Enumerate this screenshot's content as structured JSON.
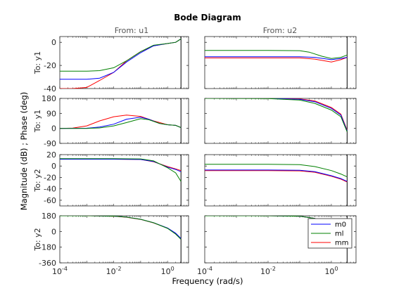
{
  "chart_data": {
    "type": "line",
    "title": "Bode Diagram",
    "xlabel": "Frequency  (rad/s)",
    "ylabel": "Magnitude (dB) ; Phase (deg)",
    "xscale": "log",
    "xlim": [
      0.0001,
      6
    ],
    "columns": [
      "From: u1",
      "From: u2"
    ],
    "rows": [
      {
        "label": "To: y1",
        "kind": "magnitude",
        "ylim": [
          -40,
          5
        ],
        "ticks": [
          -40,
          -20,
          0
        ],
        "tick_labels": [
          "-40",
          "-20",
          "0"
        ]
      },
      {
        "label": "To: y1",
        "kind": "phase",
        "ylim": [
          -90,
          180
        ],
        "ticks": [
          -90,
          0,
          90,
          180
        ],
        "tick_labels": [
          "-90",
          "0",
          "90",
          "180"
        ]
      },
      {
        "label": "To: y2",
        "kind": "magnitude",
        "ylim": [
          -70,
          20
        ],
        "ticks": [
          -60,
          -40,
          -20,
          0,
          20
        ],
        "tick_labels": [
          "-60",
          "-40",
          "-20",
          "0",
          "20"
        ]
      },
      {
        "label": "To: y2",
        "kind": "phase",
        "ylim": [
          -360,
          180
        ],
        "ticks": [
          -360,
          -180,
          0,
          180
        ],
        "tick_labels": [
          "-360",
          "-180",
          "0",
          "180"
        ]
      }
    ],
    "xticks": [
      0.0001,
      0.01,
      1
    ],
    "xtick_labels": [
      {
        "base": "10",
        "exp": "-4"
      },
      {
        "base": "10",
        "exp": "-2"
      },
      {
        "base": "10",
        "exp": "0"
      }
    ],
    "nyquist_frequency": 3.14,
    "grid": false,
    "legend": {
      "position": "bottom-right",
      "panel": "row 4, From: u2"
    },
    "series": [
      {
        "name": "m0",
        "color": "#0000ff"
      },
      {
        "name": "ml",
        "color": "#008000"
      },
      {
        "name": "mm",
        "color": "#ff0000"
      }
    ],
    "panels": [
      {
        "row": 0,
        "col": 0,
        "curves": {
          "m0": [
            [
              0.0001,
              -32
            ],
            [
              0.001,
              -32
            ],
            [
              0.003,
              -31
            ],
            [
              0.01,
              -26
            ],
            [
              0.03,
              -17
            ],
            [
              0.1,
              -9
            ],
            [
              0.3,
              -3
            ],
            [
              1,
              -1
            ],
            [
              2,
              0
            ],
            [
              3.14,
              3
            ]
          ],
          "ml": [
            [
              0.0001,
              -25
            ],
            [
              0.001,
              -25
            ],
            [
              0.003,
              -24.5
            ],
            [
              0.01,
              -22
            ],
            [
              0.03,
              -16
            ],
            [
              0.1,
              -8
            ],
            [
              0.3,
              -2.5
            ],
            [
              1,
              -1
            ],
            [
              2,
              0
            ],
            [
              3.14,
              3
            ]
          ],
          "mm": [
            [
              0.0001,
              -40
            ],
            [
              0.0003,
              -40
            ],
            [
              0.001,
              -39
            ],
            [
              0.003,
              -33
            ],
            [
              0.01,
              -26
            ],
            [
              0.03,
              -16
            ],
            [
              0.1,
              -8
            ],
            [
              0.3,
              -3
            ],
            [
              1,
              -1
            ],
            [
              2,
              0
            ],
            [
              3.14,
              3
            ]
          ]
        }
      },
      {
        "row": 0,
        "col": 1,
        "curves": {
          "m0": [
            [
              0.0001,
              -12.5
            ],
            [
              0.01,
              -12.5
            ],
            [
              0.1,
              -12.5
            ],
            [
              0.3,
              -13
            ],
            [
              1,
              -15
            ],
            [
              2,
              -14
            ],
            [
              3.14,
              -13
            ]
          ],
          "ml": [
            [
              0.0001,
              -7
            ],
            [
              0.01,
              -7
            ],
            [
              0.1,
              -7.2
            ],
            [
              0.2,
              -8.5
            ],
            [
              0.5,
              -12
            ],
            [
              1,
              -14
            ],
            [
              2,
              -13
            ],
            [
              3.14,
              -11
            ]
          ],
          "mm": [
            [
              0.0001,
              -13.5
            ],
            [
              0.01,
              -13.5
            ],
            [
              0.1,
              -13.5
            ],
            [
              0.3,
              -14.5
            ],
            [
              1,
              -17
            ],
            [
              2,
              -15
            ],
            [
              3.14,
              -13
            ]
          ]
        }
      },
      {
        "row": 1,
        "col": 0,
        "curves": {
          "m0": [
            [
              0.0001,
              0
            ],
            [
              0.001,
              1
            ],
            [
              0.003,
              8
            ],
            [
              0.01,
              25
            ],
            [
              0.03,
              55
            ],
            [
              0.1,
              67
            ],
            [
              0.2,
              55
            ],
            [
              0.5,
              30
            ],
            [
              1,
              22
            ],
            [
              2,
              18
            ],
            [
              3.14,
              5
            ]
          ],
          "ml": [
            [
              0.0001,
              0
            ],
            [
              0.001,
              0
            ],
            [
              0.003,
              3
            ],
            [
              0.01,
              15
            ],
            [
              0.03,
              35
            ],
            [
              0.1,
              58
            ],
            [
              0.2,
              52
            ],
            [
              0.5,
              30
            ],
            [
              1,
              22
            ],
            [
              2,
              18
            ],
            [
              3.14,
              5
            ]
          ],
          "mm": [
            [
              0.0001,
              0
            ],
            [
              0.0003,
              2
            ],
            [
              0.001,
              15
            ],
            [
              0.003,
              45
            ],
            [
              0.01,
              70
            ],
            [
              0.03,
              80
            ],
            [
              0.1,
              72
            ],
            [
              0.3,
              45
            ],
            [
              1,
              22
            ],
            [
              2,
              18
            ],
            [
              3.14,
              5
            ]
          ]
        }
      },
      {
        "row": 1,
        "col": 1,
        "curves": {
          "m0": [
            [
              0.0001,
              180
            ],
            [
              0.01,
              180
            ],
            [
              0.1,
              175
            ],
            [
              0.3,
              160
            ],
            [
              1,
              120
            ],
            [
              2,
              80
            ],
            [
              3.14,
              -15
            ]
          ],
          "ml": [
            [
              0.0001,
              180
            ],
            [
              0.01,
              179
            ],
            [
              0.1,
              170
            ],
            [
              0.3,
              150
            ],
            [
              1,
              110
            ],
            [
              2,
              70
            ],
            [
              3.14,
              -20
            ]
          ],
          "mm": [
            [
              0.0001,
              180
            ],
            [
              0.01,
              180
            ],
            [
              0.1,
              177
            ],
            [
              0.3,
              165
            ],
            [
              1,
              125
            ],
            [
              2,
              85
            ],
            [
              3.14,
              -10
            ]
          ]
        }
      },
      {
        "row": 2,
        "col": 0,
        "curves": {
          "m0": [
            [
              0.0001,
              12
            ],
            [
              0.01,
              12
            ],
            [
              0.1,
              11.5
            ],
            [
              0.3,
              8
            ],
            [
              1,
              -2
            ],
            [
              2,
              -6
            ],
            [
              3.14,
              -10
            ]
          ],
          "ml": [
            [
              0.0001,
              13
            ],
            [
              0.01,
              13
            ],
            [
              0.1,
              12.5
            ],
            [
              0.3,
              9
            ],
            [
              1,
              -3
            ],
            [
              2,
              -12
            ],
            [
              3.14,
              -27
            ]
          ],
          "mm": [
            [
              0.0001,
              12
            ],
            [
              0.01,
              12
            ],
            [
              0.1,
              11.5
            ],
            [
              0.3,
              7.5
            ],
            [
              1,
              -1
            ],
            [
              2,
              -5
            ],
            [
              3.14,
              -8
            ]
          ]
        }
      },
      {
        "row": 2,
        "col": 1,
        "curves": {
          "m0": [
            [
              0.0001,
              -7
            ],
            [
              0.01,
              -7
            ],
            [
              0.1,
              -7.5
            ],
            [
              0.3,
              -10
            ],
            [
              1,
              -17
            ],
            [
              2,
              -22
            ],
            [
              3.14,
              -27
            ]
          ],
          "ml": [
            [
              0.0001,
              3
            ],
            [
              0.01,
              3
            ],
            [
              0.1,
              2.5
            ],
            [
              0.3,
              -1
            ],
            [
              1,
              -8
            ],
            [
              2,
              -14
            ],
            [
              3.14,
              -19
            ]
          ],
          "mm": [
            [
              0.0001,
              -8
            ],
            [
              0.01,
              -8
            ],
            [
              0.1,
              -8.5
            ],
            [
              0.3,
              -11
            ],
            [
              1,
              -18
            ],
            [
              2,
              -23
            ],
            [
              3.14,
              -28
            ]
          ]
        }
      },
      {
        "row": 3,
        "col": 0,
        "curves": {
          "m0": [
            [
              0.0001,
              180
            ],
            [
              0.001,
              180
            ],
            [
              0.01,
              176
            ],
            [
              0.03,
              165
            ],
            [
              0.1,
              140
            ],
            [
              0.3,
              100
            ],
            [
              1,
              40
            ],
            [
              2,
              -20
            ],
            [
              3.14,
              -80
            ]
          ],
          "ml": [
            [
              0.0001,
              180
            ],
            [
              0.001,
              180
            ],
            [
              0.01,
              176
            ],
            [
              0.03,
              165
            ],
            [
              0.1,
              140
            ],
            [
              0.3,
              100
            ],
            [
              1,
              35
            ],
            [
              2,
              -30
            ],
            [
              3.14,
              -90
            ]
          ],
          "mm": [
            [
              0.0001,
              180
            ],
            [
              0.001,
              180
            ],
            [
              0.01,
              175
            ],
            [
              0.03,
              163
            ],
            [
              0.1,
              138
            ],
            [
              0.3,
              98
            ],
            [
              1,
              38
            ],
            [
              2,
              -25
            ],
            [
              3.14,
              -85
            ]
          ]
        }
      },
      {
        "row": 3,
        "col": 1,
        "curves": {
          "m0": [
            [
              0.0001,
              180
            ],
            [
              0.01,
              180
            ],
            [
              0.1,
              175
            ],
            [
              0.3,
              150
            ],
            [
              1,
              60
            ],
            [
              2,
              -40
            ],
            [
              3.14,
              -100
            ]
          ],
          "ml": [
            [
              0.0001,
              180
            ],
            [
              0.01,
              180
            ],
            [
              0.1,
              175
            ],
            [
              0.3,
              150
            ],
            [
              1,
              60
            ],
            [
              2,
              -40
            ],
            [
              3.14,
              -100
            ]
          ],
          "mm": [
            [
              0.0001,
              180
            ],
            [
              0.01,
              180
            ],
            [
              0.1,
              175
            ],
            [
              0.3,
              150
            ],
            [
              1,
              60
            ],
            [
              2,
              -40
            ],
            [
              3.14,
              -100
            ]
          ]
        }
      }
    ]
  }
}
